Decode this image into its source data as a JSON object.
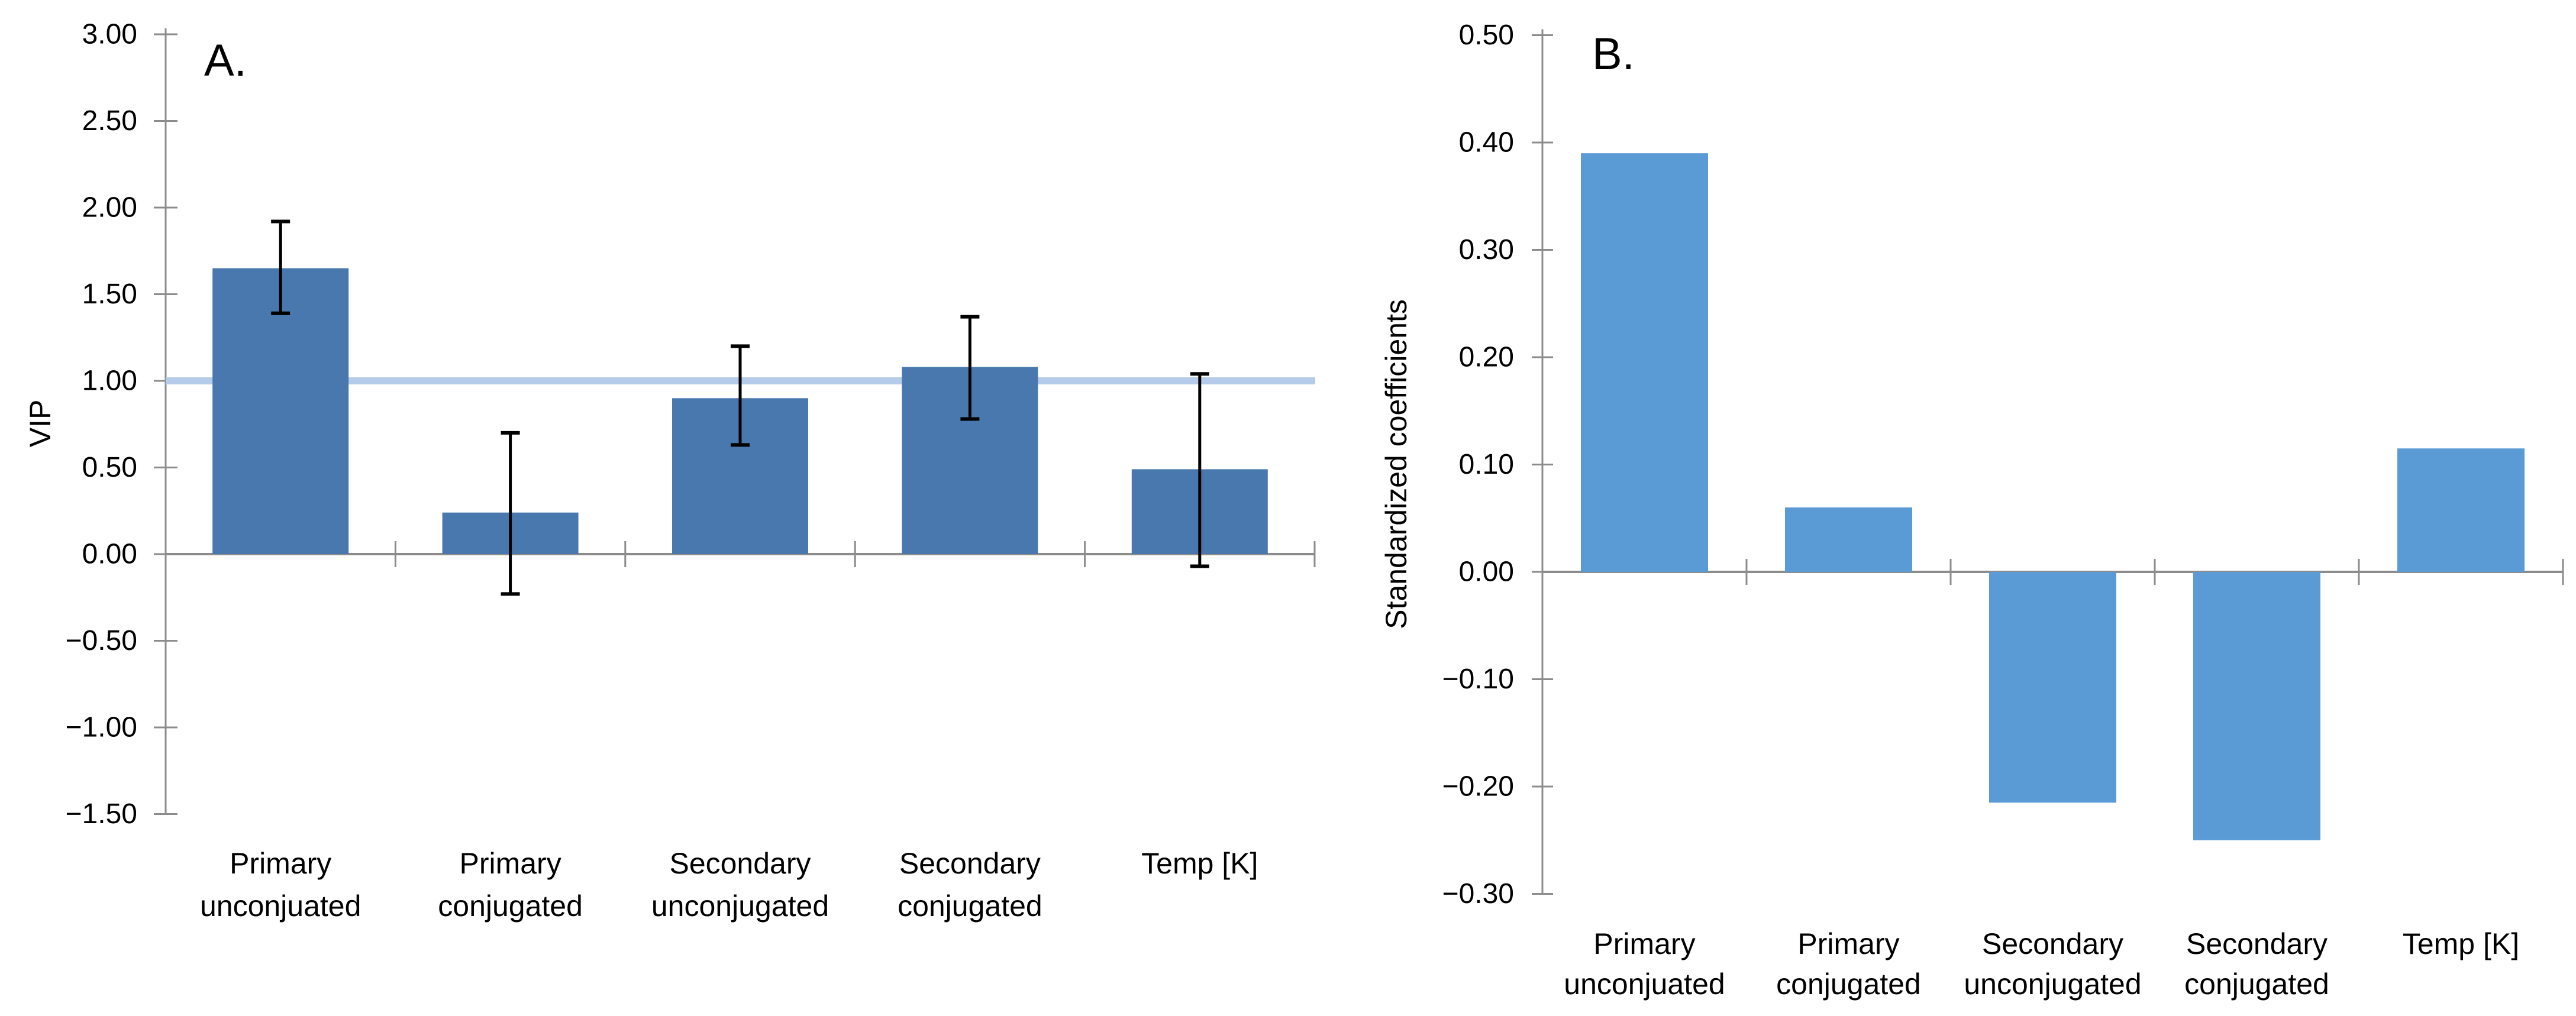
{
  "figure_title": "",
  "chart_data": [
    {
      "type": "bar",
      "panel_label": "A.",
      "title": "",
      "xlabel": "",
      "ylabel": "VIP",
      "categories": [
        "Primary unconjuated",
        "Primary conjugated",
        "Secondary unconjugated",
        "Secondary conjugated",
        "Temp [K]"
      ],
      "category_lines": [
        [
          "Primary",
          "unconjuated"
        ],
        [
          "Primary",
          "conjugated"
        ],
        [
          "Secondary",
          "unconjugated"
        ],
        [
          "Secondary",
          "conjugated"
        ],
        [
          "Temp [K]"
        ]
      ],
      "values": [
        1.65,
        0.24,
        0.9,
        1.08,
        0.49
      ],
      "error_low": [
        1.39,
        -0.23,
        0.63,
        0.78,
        -0.07
      ],
      "error_high": [
        1.92,
        0.7,
        1.2,
        1.37,
        1.04
      ],
      "ylim": [
        -1.5,
        3.0
      ],
      "y_tick_step": 0.5,
      "y_tick_values": [
        3.0,
        2.5,
        2.0,
        1.5,
        1.0,
        0.5,
        0.0,
        -0.5,
        -1.0,
        -1.5
      ],
      "y_tick_labels": [
        "3.00",
        "2.50",
        "2.00",
        "1.50",
        "1.00",
        "0.50",
        "0.00",
        "−0.50",
        "−1.00",
        "−1.50"
      ],
      "reference_line_y": 1.0,
      "reference_line_color": "#B4CCEA",
      "bar_color": "#4978AE",
      "error_bar_color": "#000000",
      "axis_color": "#8C8C8C",
      "grid": false,
      "legend": false
    },
    {
      "type": "bar",
      "panel_label": "B.",
      "title": "",
      "xlabel": "",
      "ylabel": "Standardized coefficients",
      "categories": [
        "Primary unconjuated",
        "Primary conjugated",
        "Secondary unconjugated",
        "Secondary conjugated",
        "Temp [K]"
      ],
      "category_lines": [
        [
          "Primary",
          "unconjuated"
        ],
        [
          "Primary",
          "conjugated"
        ],
        [
          "Secondary",
          "unconjugated"
        ],
        [
          "Secondary",
          "conjugated"
        ],
        [
          "Temp [K]"
        ]
      ],
      "values": [
        0.39,
        0.06,
        -0.215,
        -0.25,
        0.115
      ],
      "ylim": [
        -0.3,
        0.5
      ],
      "y_tick_step": 0.1,
      "y_tick_values": [
        0.5,
        0.4,
        0.3,
        0.2,
        0.1,
        0.0,
        -0.1,
        -0.2,
        -0.3
      ],
      "y_tick_labels": [
        "0.50",
        "0.40",
        "0.30",
        "0.20",
        "0.10",
        "0.00",
        "−0.10",
        "−0.20",
        "−0.30"
      ],
      "reference_line_y": null,
      "bar_color": "#5B9BD5",
      "axis_color": "#8C8C8C",
      "grid": false,
      "legend": false
    }
  ]
}
